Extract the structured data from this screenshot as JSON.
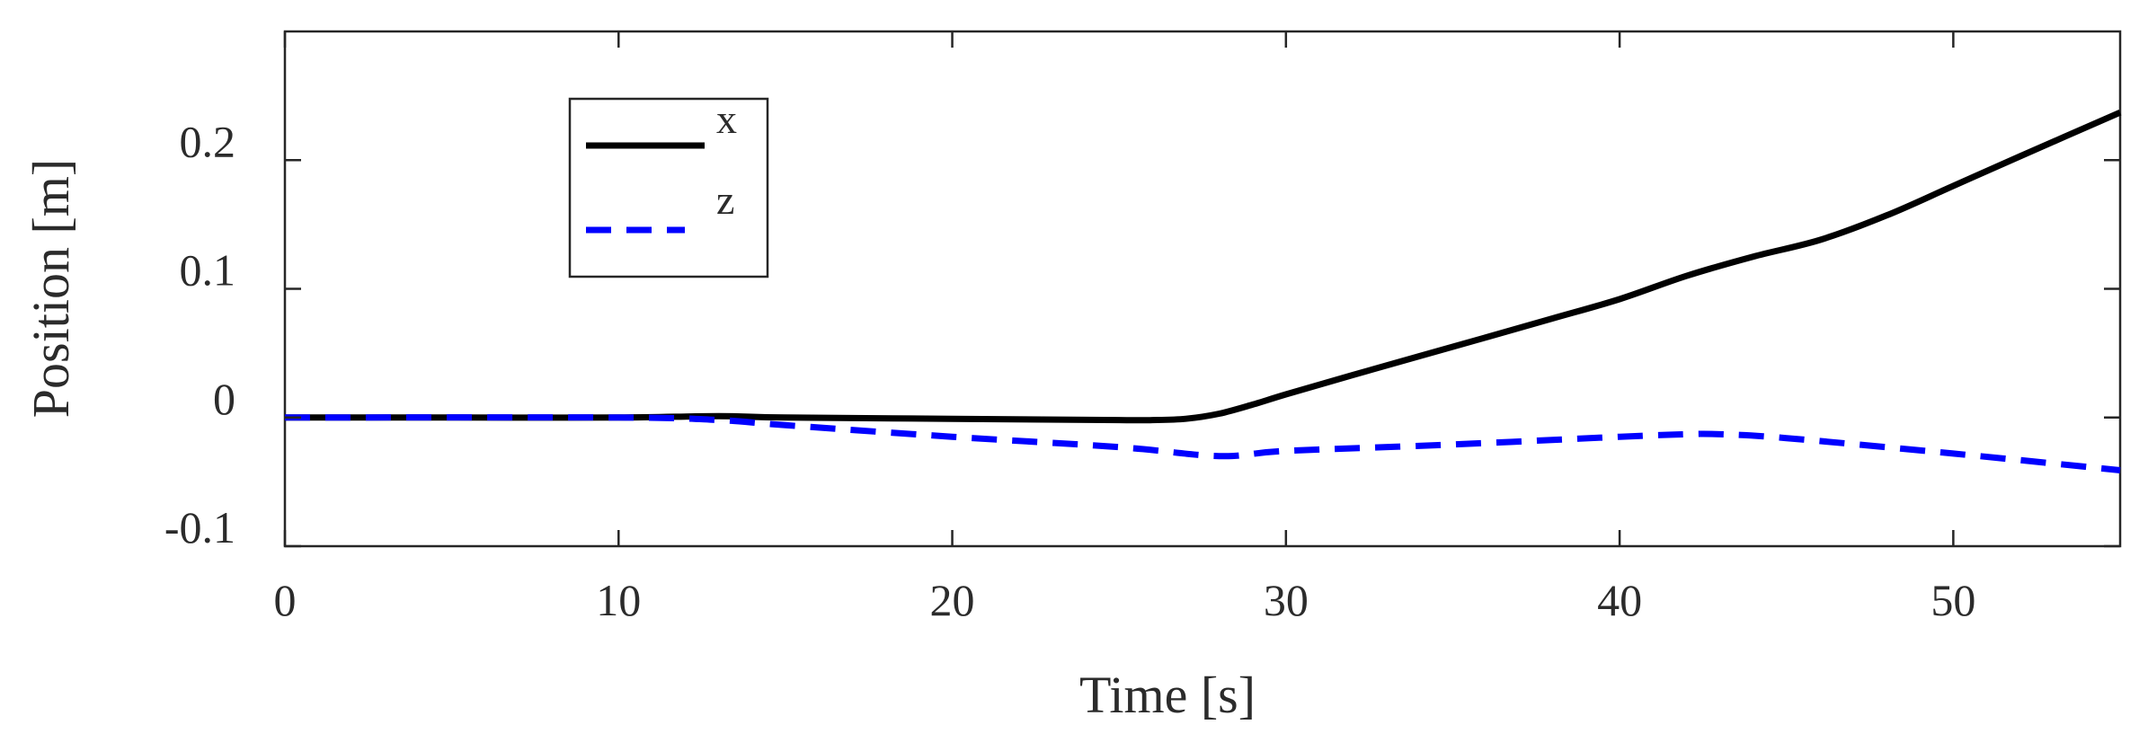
{
  "chart_data": {
    "type": "line",
    "title": "",
    "xlabel": "Time [s]",
    "ylabel": "Position [m]",
    "xlim": [
      0,
      55
    ],
    "ylim": [
      -0.1,
      0.3
    ],
    "xticks": [
      0,
      10,
      20,
      30,
      40,
      50
    ],
    "xtick_labels": [
      "0",
      "10",
      "20",
      "30",
      "40",
      "50"
    ],
    "yticks": [
      -0.1,
      0,
      0.1,
      0.2
    ],
    "ytick_labels": [
      "-0.1",
      "0",
      "0.1",
      "0.2"
    ],
    "grid": false,
    "legend_position": "top-left",
    "series": [
      {
        "name": "x",
        "color": "#000000",
        "style": "solid",
        "x": [
          0,
          5,
          10,
          13,
          15,
          20,
          25,
          26,
          27,
          28,
          29,
          30,
          32,
          35,
          38,
          40,
          42,
          44,
          46,
          48,
          50,
          52,
          55
        ],
        "y": [
          0.0,
          0.0,
          0.0,
          0.001,
          0.0,
          -0.001,
          -0.002,
          -0.002,
          -0.001,
          0.003,
          0.01,
          0.018,
          0.033,
          0.055,
          0.077,
          0.092,
          0.11,
          0.125,
          0.138,
          0.157,
          0.18,
          0.203,
          0.237
        ]
      },
      {
        "name": "z",
        "color": "#0000ff",
        "style": "dashed",
        "x": [
          0,
          10,
          13,
          15,
          20,
          25,
          28,
          30,
          35,
          40,
          42,
          43,
          45,
          50,
          55
        ],
        "y": [
          0.0,
          0.0,
          -0.002,
          -0.006,
          -0.015,
          -0.023,
          -0.03,
          -0.026,
          -0.021,
          -0.015,
          -0.013,
          -0.013,
          -0.016,
          -0.028,
          -0.041
        ]
      }
    ]
  }
}
